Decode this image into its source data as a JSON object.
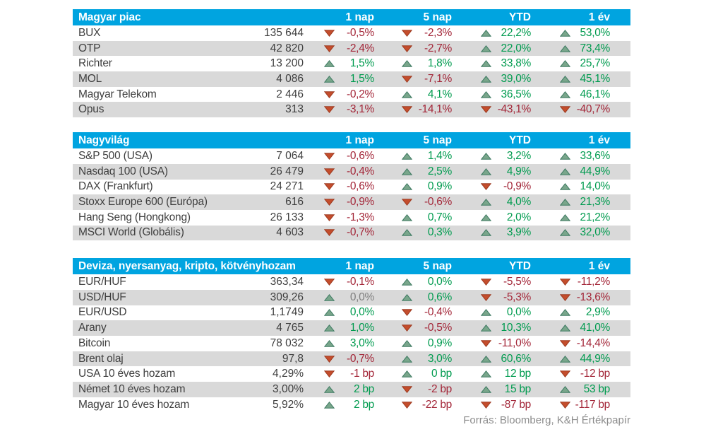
{
  "colors": {
    "header_bg": "#00a4e0",
    "stripe_bg": "#d9d9d9",
    "text": "#3f3f3f",
    "green_text": "#009b4f",
    "red_text": "#a32638",
    "neutral_text": "#7f7f7f",
    "arrow_up_fill": "#79a68b",
    "arrow_up_stroke": "#3e7a62",
    "arrow_down_fill": "#c44d2c",
    "arrow_down_stroke": "#9d3a20",
    "source_text": "#8c8c8c"
  },
  "icons": {
    "up": "arrow-up-icon",
    "down": "arrow-down-icon"
  },
  "column_headers": [
    "1 nap",
    "5 nap",
    "YTD",
    "1 év"
  ],
  "tables": [
    {
      "title": "Magyar piac",
      "rows": [
        {
          "name": "BUX",
          "value": "135 644",
          "changes": [
            {
              "dir": "down",
              "text": "-0,5%",
              "color": "red"
            },
            {
              "dir": "down",
              "text": "-2,3%",
              "color": "red"
            },
            {
              "dir": "up",
              "text": "22,2%",
              "color": "green"
            },
            {
              "dir": "up",
              "text": "53,0%",
              "color": "green"
            }
          ]
        },
        {
          "name": "OTP",
          "value": "42 820",
          "changes": [
            {
              "dir": "down",
              "text": "-2,4%",
              "color": "red"
            },
            {
              "dir": "down",
              "text": "-2,7%",
              "color": "red"
            },
            {
              "dir": "up",
              "text": "22,0%",
              "color": "green"
            },
            {
              "dir": "up",
              "text": "73,4%",
              "color": "green"
            }
          ]
        },
        {
          "name": "Richter",
          "value": "13 200",
          "changes": [
            {
              "dir": "up",
              "text": "1,5%",
              "color": "green"
            },
            {
              "dir": "up",
              "text": "1,8%",
              "color": "green"
            },
            {
              "dir": "up",
              "text": "33,8%",
              "color": "green"
            },
            {
              "dir": "up",
              "text": "25,7%",
              "color": "green"
            }
          ]
        },
        {
          "name": "MOL",
          "value": "4 086",
          "changes": [
            {
              "dir": "up",
              "text": "1,5%",
              "color": "green"
            },
            {
              "dir": "down",
              "text": "-7,1%",
              "color": "red"
            },
            {
              "dir": "up",
              "text": "39,0%",
              "color": "green"
            },
            {
              "dir": "up",
              "text": "45,1%",
              "color": "green"
            }
          ]
        },
        {
          "name": "Magyar Telekom",
          "value": "2 446",
          "changes": [
            {
              "dir": "down",
              "text": "-0,2%",
              "color": "red"
            },
            {
              "dir": "up",
              "text": "4,1%",
              "color": "green"
            },
            {
              "dir": "up",
              "text": "36,5%",
              "color": "green"
            },
            {
              "dir": "up",
              "text": "46,1%",
              "color": "green"
            }
          ]
        },
        {
          "name": "Opus",
          "value": "313",
          "changes": [
            {
              "dir": "down",
              "text": "-3,1%",
              "color": "red"
            },
            {
              "dir": "down",
              "text": "-14,1%",
              "color": "red"
            },
            {
              "dir": "down",
              "text": "-43,1%",
              "color": "red"
            },
            {
              "dir": "down",
              "text": "-40,7%",
              "color": "red"
            }
          ]
        }
      ]
    },
    {
      "title": "Nagyvilág",
      "rows": [
        {
          "name": "S&P 500 (USA)",
          "value": "7 064",
          "changes": [
            {
              "dir": "down",
              "text": "-0,6%",
              "color": "red"
            },
            {
              "dir": "up",
              "text": "1,4%",
              "color": "green"
            },
            {
              "dir": "up",
              "text": "3,2%",
              "color": "green"
            },
            {
              "dir": "up",
              "text": "33,6%",
              "color": "green"
            }
          ]
        },
        {
          "name": "Nasdaq 100 (USA)",
          "value": "26 479",
          "changes": [
            {
              "dir": "down",
              "text": "-0,4%",
              "color": "red"
            },
            {
              "dir": "up",
              "text": "2,5%",
              "color": "green"
            },
            {
              "dir": "up",
              "text": "4,9%",
              "color": "green"
            },
            {
              "dir": "up",
              "text": "44,9%",
              "color": "green"
            }
          ]
        },
        {
          "name": "DAX (Frankfurt)",
          "value": "24 271",
          "changes": [
            {
              "dir": "down",
              "text": "-0,6%",
              "color": "red"
            },
            {
              "dir": "up",
              "text": "0,9%",
              "color": "green"
            },
            {
              "dir": "down",
              "text": "-0,9%",
              "color": "red"
            },
            {
              "dir": "up",
              "text": "14,0%",
              "color": "green"
            }
          ]
        },
        {
          "name": "Stoxx Europe 600 (Európa)",
          "value": "616",
          "changes": [
            {
              "dir": "down",
              "text": "-0,9%",
              "color": "red"
            },
            {
              "dir": "down",
              "text": "-0,6%",
              "color": "red"
            },
            {
              "dir": "up",
              "text": "4,0%",
              "color": "green"
            },
            {
              "dir": "up",
              "text": "21,3%",
              "color": "green"
            }
          ]
        },
        {
          "name": "Hang Seng (Hongkong)",
          "value": "26 133",
          "changes": [
            {
              "dir": "down",
              "text": "-1,3%",
              "color": "red"
            },
            {
              "dir": "up",
              "text": "0,7%",
              "color": "green"
            },
            {
              "dir": "up",
              "text": "2,0%",
              "color": "green"
            },
            {
              "dir": "up",
              "text": "21,2%",
              "color": "green"
            }
          ]
        },
        {
          "name": "MSCI World (Globális)",
          "value": "4 603",
          "changes": [
            {
              "dir": "down",
              "text": "-0,7%",
              "color": "red"
            },
            {
              "dir": "up",
              "text": "0,3%",
              "color": "green"
            },
            {
              "dir": "up",
              "text": "3,9%",
              "color": "green"
            },
            {
              "dir": "up",
              "text": "32,0%",
              "color": "green"
            }
          ]
        }
      ]
    },
    {
      "title": "Deviza, nyersanyag, kripto, kötvényhozam",
      "rows": [
        {
          "name": "EUR/HUF",
          "value": "363,34",
          "changes": [
            {
              "dir": "down",
              "text": "-0,1%",
              "color": "red"
            },
            {
              "dir": "up",
              "text": "0,0%",
              "color": "green"
            },
            {
              "dir": "down",
              "text": "-5,5%",
              "color": "red"
            },
            {
              "dir": "down",
              "text": "-11,2%",
              "color": "red"
            }
          ]
        },
        {
          "name": "USD/HUF",
          "value": "309,26",
          "changes": [
            {
              "dir": "up",
              "text": "0,0%",
              "color": "neutral"
            },
            {
              "dir": "up",
              "text": "0,6%",
              "color": "green"
            },
            {
              "dir": "down",
              "text": "-5,3%",
              "color": "red"
            },
            {
              "dir": "down",
              "text": "-13,6%",
              "color": "red"
            }
          ]
        },
        {
          "name": "EUR/USD",
          "value": "1,1749",
          "changes": [
            {
              "dir": "up",
              "text": "0,0%",
              "color": "green"
            },
            {
              "dir": "down",
              "text": "-0,4%",
              "color": "red"
            },
            {
              "dir": "up",
              "text": "0,0%",
              "color": "green"
            },
            {
              "dir": "up",
              "text": "2,9%",
              "color": "green"
            }
          ]
        },
        {
          "name": "Arany",
          "value": "4 765",
          "changes": [
            {
              "dir": "up",
              "text": "1,0%",
              "color": "green"
            },
            {
              "dir": "down",
              "text": "-0,5%",
              "color": "red"
            },
            {
              "dir": "up",
              "text": "10,3%",
              "color": "green"
            },
            {
              "dir": "up",
              "text": "41,0%",
              "color": "green"
            }
          ]
        },
        {
          "name": "Bitcoin",
          "value": "78 032",
          "changes": [
            {
              "dir": "up",
              "text": "3,0%",
              "color": "green"
            },
            {
              "dir": "up",
              "text": "0,9%",
              "color": "green"
            },
            {
              "dir": "down",
              "text": "-11,0%",
              "color": "red"
            },
            {
              "dir": "down",
              "text": "-14,4%",
              "color": "red"
            }
          ]
        },
        {
          "name": "Brent olaj",
          "value": "97,8",
          "changes": [
            {
              "dir": "down",
              "text": "-0,7%",
              "color": "red"
            },
            {
              "dir": "up",
              "text": "3,0%",
              "color": "green"
            },
            {
              "dir": "up",
              "text": "60,6%",
              "color": "green"
            },
            {
              "dir": "up",
              "text": "44,9%",
              "color": "green"
            }
          ]
        },
        {
          "name": "USA 10 éves hozam",
          "value": "4,29%",
          "changes": [
            {
              "dir": "down",
              "text": "-1 bp",
              "color": "red"
            },
            {
              "dir": "up",
              "text": "0 bp",
              "color": "green"
            },
            {
              "dir": "up",
              "text": "12 bp",
              "color": "green"
            },
            {
              "dir": "down",
              "text": "-12 bp",
              "color": "red"
            }
          ]
        },
        {
          "name": "Német 10 éves hozam",
          "value": "3,00%",
          "changes": [
            {
              "dir": "up",
              "text": "2 bp",
              "color": "green"
            },
            {
              "dir": "down",
              "text": "-2 bp",
              "color": "red"
            },
            {
              "dir": "up",
              "text": "15 bp",
              "color": "green"
            },
            {
              "dir": "up",
              "text": "53 bp",
              "color": "green"
            }
          ]
        },
        {
          "name": "Magyar 10 éves hozam",
          "value": "5,92%",
          "changes": [
            {
              "dir": "up",
              "text": "2 bp",
              "color": "green"
            },
            {
              "dir": "down",
              "text": "-22 bp",
              "color": "red"
            },
            {
              "dir": "down",
              "text": "-87 bp",
              "color": "red"
            },
            {
              "dir": "down",
              "text": "-117 bp",
              "color": "red"
            }
          ]
        }
      ]
    }
  ],
  "source": "Forrás: Bloomberg, K&H Értékpapír"
}
